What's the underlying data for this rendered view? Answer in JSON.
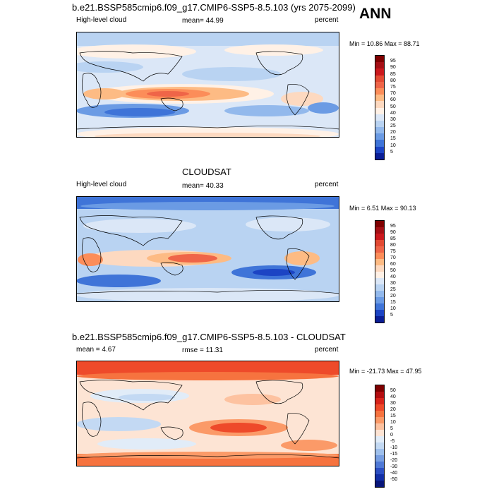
{
  "panels": [
    {
      "title": "b.e21.BSSP585cmip6.f09_g17.CMIP6-SSP5-8.5.103 (yrs 2075-2099)",
      "left_label": "High-level cloud",
      "center_label": "mean=  44.99",
      "right_label": "percent",
      "minmax": "Min = 10.86 Max = 88.71"
    },
    {
      "title": "CLOUDSAT",
      "left_label": "High-level cloud",
      "center_label": "mean=  40.33",
      "right_label": "percent",
      "minmax": "Min =  6.51 Max = 90.13"
    },
    {
      "title": "b.e21.BSSP585cmip6.f09_g17.CMIP6-SSP5-8.5.103 - CLOUDSAT",
      "left_label": "mean =   4.67",
      "center_label": "rmse =  11.31",
      "right_label": "percent",
      "minmax": "Min = -21.73 Max = 47.95"
    }
  ],
  "season": "ANN",
  "colorbar_abs": {
    "labels": [
      "95",
      "90",
      "85",
      "80",
      "75",
      "70",
      "60",
      "50",
      "40",
      "30",
      "25",
      "20",
      "15",
      "10",
      "5"
    ],
    "colors": [
      "#7f0000",
      "#a50f15",
      "#cb181d",
      "#e34a33",
      "#ef6548",
      "#fc8d59",
      "#fdbb84",
      "#fdd9c0",
      "#fff1e6",
      "#dbe7f7",
      "#b9d3f2",
      "#93b9ec",
      "#6b9be4",
      "#3f74d8",
      "#1c44c4",
      "#0a1e96"
    ]
  },
  "colorbar_diff": {
    "labels": [
      "50",
      "40",
      "30",
      "20",
      "15",
      "10",
      "5",
      "0",
      "-5",
      "-10",
      "-15",
      "-20",
      "-30",
      "-40",
      "-50"
    ],
    "colors": [
      "#7f0000",
      "#b30d10",
      "#d8231a",
      "#ee4a2a",
      "#f6733f",
      "#fb9a68",
      "#fdc2a0",
      "#fde4d4",
      "#e1ecf8",
      "#c3d9f3",
      "#9fc0ec",
      "#789fe2",
      "#4f79d6",
      "#2c4fc3",
      "#122fa7",
      "#07157a"
    ]
  }
}
